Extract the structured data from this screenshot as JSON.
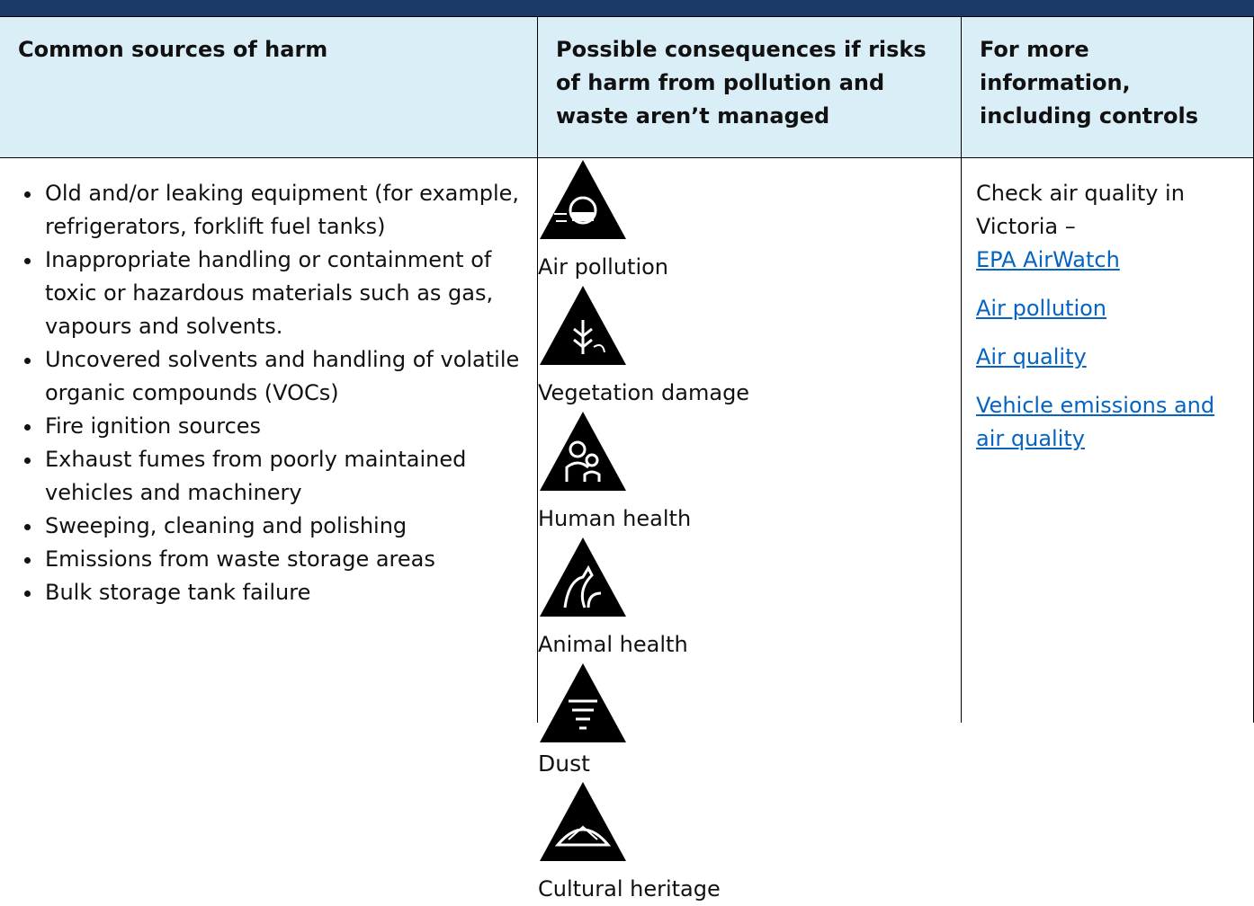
{
  "table": {
    "headers": [
      "Common sources of harm",
      "Possible consequences if risks of harm from pollution and waste aren’t managed",
      "For more information, including controls"
    ],
    "sources": [
      "Old and/or leaking equipment (for example, refrigerators, forklift fuel tanks)",
      "Inappropriate handling or containment of toxic or hazardous materials such as gas, vapours and solvents.",
      "Uncovered solvents and handling of volatile organic compounds (VOCs)",
      "Fire ignition sources",
      "Exhaust fumes from poorly maintained vehicles and machinery",
      "Sweeping, cleaning and polishing",
      "Emissions from waste storage areas",
      "Bulk storage tank failure"
    ],
    "consequences": [
      "Air pollution",
      "Vegetation damage",
      "Human health",
      "Animal health",
      "Dust",
      "Cultural heritage"
    ],
    "info": {
      "intro": "Check air quality in Victoria –",
      "links": [
        "EPA AirWatch",
        "Air pollution",
        "Air quality",
        "Vehicle emissions and air quality"
      ]
    }
  }
}
